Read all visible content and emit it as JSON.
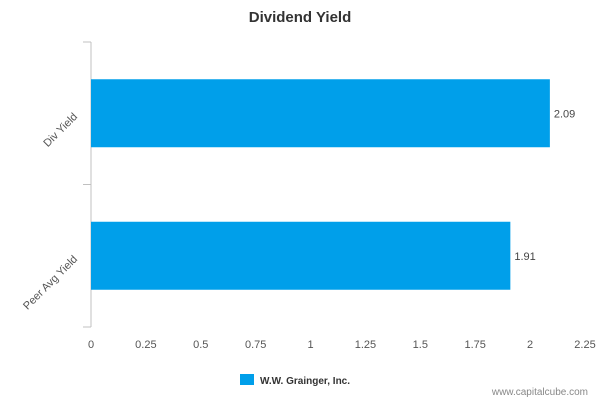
{
  "chart_data": {
    "type": "bar",
    "orientation": "horizontal",
    "title": "Dividend Yield",
    "categories": [
      "Div Yield",
      "Peer Avg Yield"
    ],
    "series": [
      {
        "name": "W.W. Grainger, Inc.",
        "values": [
          2.09,
          1.91
        ],
        "color": "#009FEA"
      }
    ],
    "value_labels": [
      "2.09",
      "1.91"
    ],
    "xlim": [
      0,
      2.25
    ],
    "x_ticks": [
      0,
      0.25,
      0.5,
      0.75,
      1,
      1.25,
      1.5,
      1.75,
      2,
      2.25
    ],
    "x_tick_labels": [
      "0",
      "0.25",
      "0.5",
      "0.75",
      "1",
      "1.25",
      "1.5",
      "1.75",
      "2",
      "2.25"
    ],
    "grid": false,
    "legend": {
      "placement": "bottom-center"
    },
    "xlabel": "",
    "ylabel": ""
  },
  "footer": {
    "source": "www.capitalcube.com"
  },
  "colors": {
    "axis": "#C0C0C0",
    "bar": "#009FEA"
  }
}
